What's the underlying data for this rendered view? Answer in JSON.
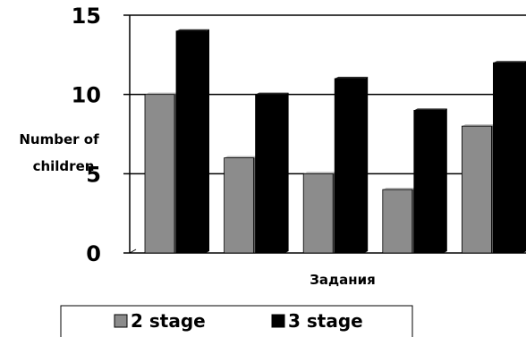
{
  "chart_data": {
    "type": "bar",
    "title": "",
    "xlabel": "Задания",
    "ylabel": [
      "Number of",
      "children"
    ],
    "ylim": [
      0,
      15
    ],
    "yticks": [
      0,
      5,
      10,
      15
    ],
    "categories": [
      "",
      "",
      "",
      "",
      ""
    ],
    "series": [
      {
        "name": "2 stage",
        "color": "#8c8c8c",
        "values": [
          10,
          6,
          5,
          4,
          8
        ]
      },
      {
        "name": "3 stage",
        "color": "#000000",
        "values": [
          14,
          10,
          11,
          9,
          12
        ]
      }
    ],
    "grid": "horizontal",
    "legend": "bottom"
  }
}
